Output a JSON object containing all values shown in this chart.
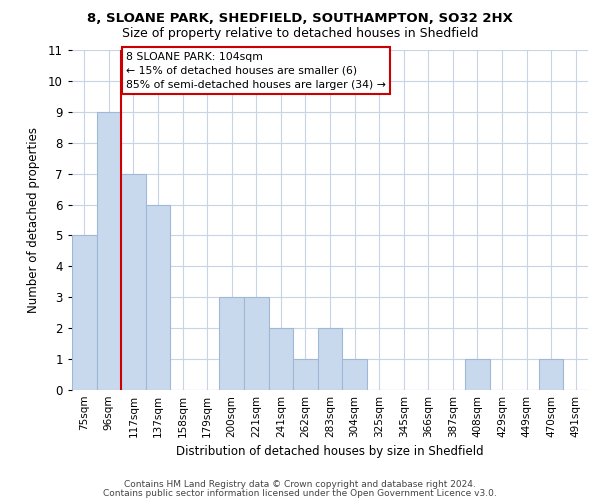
{
  "title1": "8, SLOANE PARK, SHEDFIELD, SOUTHAMPTON, SO32 2HX",
  "title2": "Size of property relative to detached houses in Shedfield",
  "xlabel": "Distribution of detached houses by size in Shedfield",
  "ylabel": "Number of detached properties",
  "categories": [
    "75sqm",
    "96sqm",
    "117sqm",
    "137sqm",
    "158sqm",
    "179sqm",
    "200sqm",
    "221sqm",
    "241sqm",
    "262sqm",
    "283sqm",
    "304sqm",
    "325sqm",
    "345sqm",
    "366sqm",
    "387sqm",
    "408sqm",
    "429sqm",
    "449sqm",
    "470sqm",
    "491sqm"
  ],
  "values": [
    5,
    9,
    7,
    6,
    0,
    0,
    3,
    3,
    2,
    1,
    2,
    1,
    0,
    0,
    0,
    0,
    1,
    0,
    0,
    1,
    0
  ],
  "bar_color": "#c9d9ed",
  "bar_edge_color": "#a0b8d8",
  "vline_color": "#cc0000",
  "ylim": [
    0,
    11
  ],
  "yticks": [
    0,
    1,
    2,
    3,
    4,
    5,
    6,
    7,
    8,
    9,
    10,
    11
  ],
  "annotation_text": "8 SLOANE PARK: 104sqm\n← 15% of detached houses are smaller (6)\n85% of semi-detached houses are larger (34) →",
  "annotation_box_color": "#ffffff",
  "annotation_box_edge": "#cc0000",
  "footnote1": "Contains HM Land Registry data © Crown copyright and database right 2024.",
  "footnote2": "Contains public sector information licensed under the Open Government Licence v3.0.",
  "bg_color": "#ffffff",
  "grid_color": "#c8d4e3"
}
